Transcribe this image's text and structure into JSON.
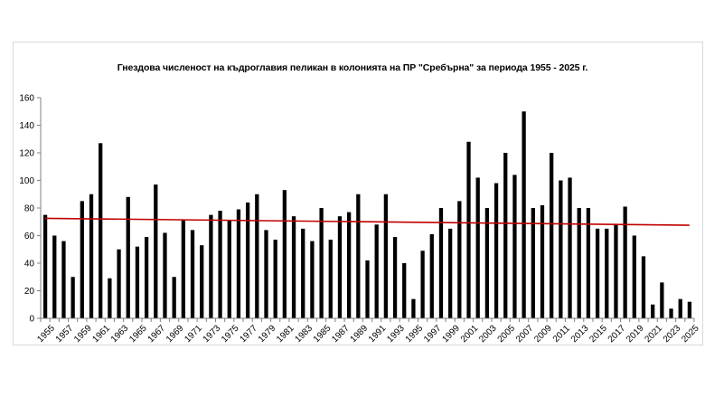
{
  "chart_data": {
    "type": "bar",
    "title": "Гнездова численост на къдроглавия пеликан в колонията на ПР \"Сребърна\" за периода 1955 - 2025 г.",
    "xlabel": "",
    "ylabel": "",
    "ylim": [
      0,
      160
    ],
    "yticks": [
      0,
      20,
      40,
      60,
      80,
      100,
      120,
      140,
      160
    ],
    "x_tick_labels": [
      "1955",
      "1957",
      "1959",
      "1961",
      "1963",
      "1965",
      "1967",
      "1969",
      "1971",
      "1973",
      "1975",
      "1977",
      "1979",
      "1981",
      "1983",
      "1985",
      "1987",
      "1989",
      "1991",
      "1993",
      "1995",
      "1997",
      "1999",
      "2001",
      "2003",
      "2005",
      "2007",
      "2009",
      "2011",
      "2013",
      "2015",
      "2017",
      "2019",
      "2021",
      "2023",
      "2025"
    ],
    "grid": false,
    "legend": "none",
    "colors": {
      "bars": "#000000",
      "trendline": "#c00000",
      "axis": "#808080"
    },
    "categories": [
      "1955",
      "1956",
      "1957",
      "1958",
      "1959",
      "1960",
      "1961",
      "1962",
      "1963",
      "1964",
      "1965",
      "1966",
      "1967",
      "1968",
      "1969",
      "1970",
      "1971",
      "1972",
      "1973",
      "1974",
      "1975",
      "1976",
      "1977",
      "1978",
      "1979",
      "1980",
      "1981",
      "1982",
      "1983",
      "1984",
      "1985",
      "1986",
      "1987",
      "1988",
      "1989",
      "1990",
      "1991",
      "1992",
      "1993",
      "1994",
      "1995",
      "1996",
      "1997",
      "1998",
      "1999",
      "2000",
      "2001",
      "2002",
      "2003",
      "2004",
      "2005",
      "2006",
      "2007",
      "2008",
      "2009",
      "2010",
      "2011",
      "2012",
      "2013",
      "2014",
      "2015",
      "2016",
      "2017",
      "2018",
      "2019",
      "2020",
      "2021",
      "2022",
      "2023",
      "2024",
      "2025"
    ],
    "values": [
      75,
      60,
      56,
      30,
      85,
      90,
      127,
      29,
      50,
      88,
      52,
      59,
      97,
      62,
      30,
      71,
      64,
      53,
      75,
      78,
      71,
      79,
      84,
      90,
      64,
      57,
      93,
      74,
      65,
      56,
      80,
      57,
      74,
      77,
      90,
      42,
      68,
      90,
      59,
      40,
      14,
      49,
      61,
      80,
      65,
      85,
      128,
      102,
      80,
      98,
      120,
      104,
      150,
      80,
      82,
      120,
      100,
      102,
      80,
      80,
      65,
      65,
      68,
      81,
      60,
      45,
      10,
      26,
      7,
      14,
      12
    ],
    "trendline": {
      "type": "linear",
      "start": 72.5,
      "end": 67.5
    }
  }
}
